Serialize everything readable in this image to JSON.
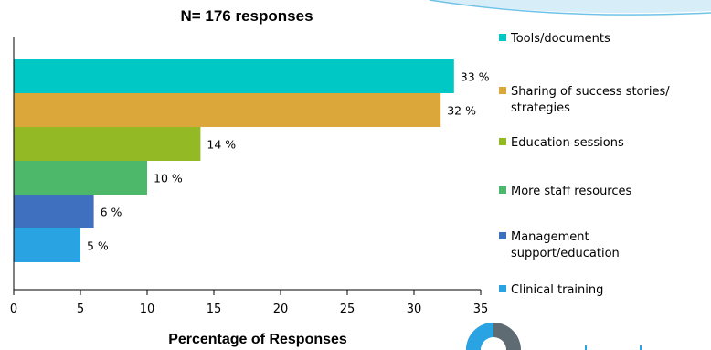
{
  "colors": {
    "tools": "#00c8c4",
    "sharing": "#dba73a",
    "education": "#93ba24",
    "staff": "#4db86a",
    "management": "#3f70bf",
    "clinical": "#2aa3e3",
    "axis": "#000000",
    "swoosh": "#6fc3e8"
  },
  "chart_data": {
    "type": "bar",
    "orientation": "horizontal",
    "title": "N= 176 responses",
    "xlabel": "Percentage of Responses",
    "ylabel": "",
    "xlim": [
      0,
      35
    ],
    "xticks": [
      "0",
      "5",
      "10",
      "15",
      "20",
      "25",
      "30",
      "35"
    ],
    "grid": false,
    "legend_position": "right",
    "categories": [
      "Tools/documents",
      "Sharing of success stories/ strategies",
      "Education sessions",
      "More staff resources",
      "Management support/education",
      "Clinical training"
    ],
    "values": [
      33,
      32,
      14,
      10,
      6,
      5
    ],
    "data_labels": [
      "33 %",
      "32 %",
      "14 %",
      "10 %",
      "6 %",
      "5 %"
    ],
    "legend": [
      {
        "lines": [
          "Tools/documents"
        ]
      },
      {
        "lines": [
          "Sharing of success stories/",
          "strategies"
        ]
      },
      {
        "lines": [
          "Education sessions"
        ]
      },
      {
        "lines": [
          "More staff resources"
        ]
      },
      {
        "lines": [
          "Management",
          "support/education"
        ]
      },
      {
        "lines": [
          "Clinical training"
        ]
      }
    ]
  }
}
